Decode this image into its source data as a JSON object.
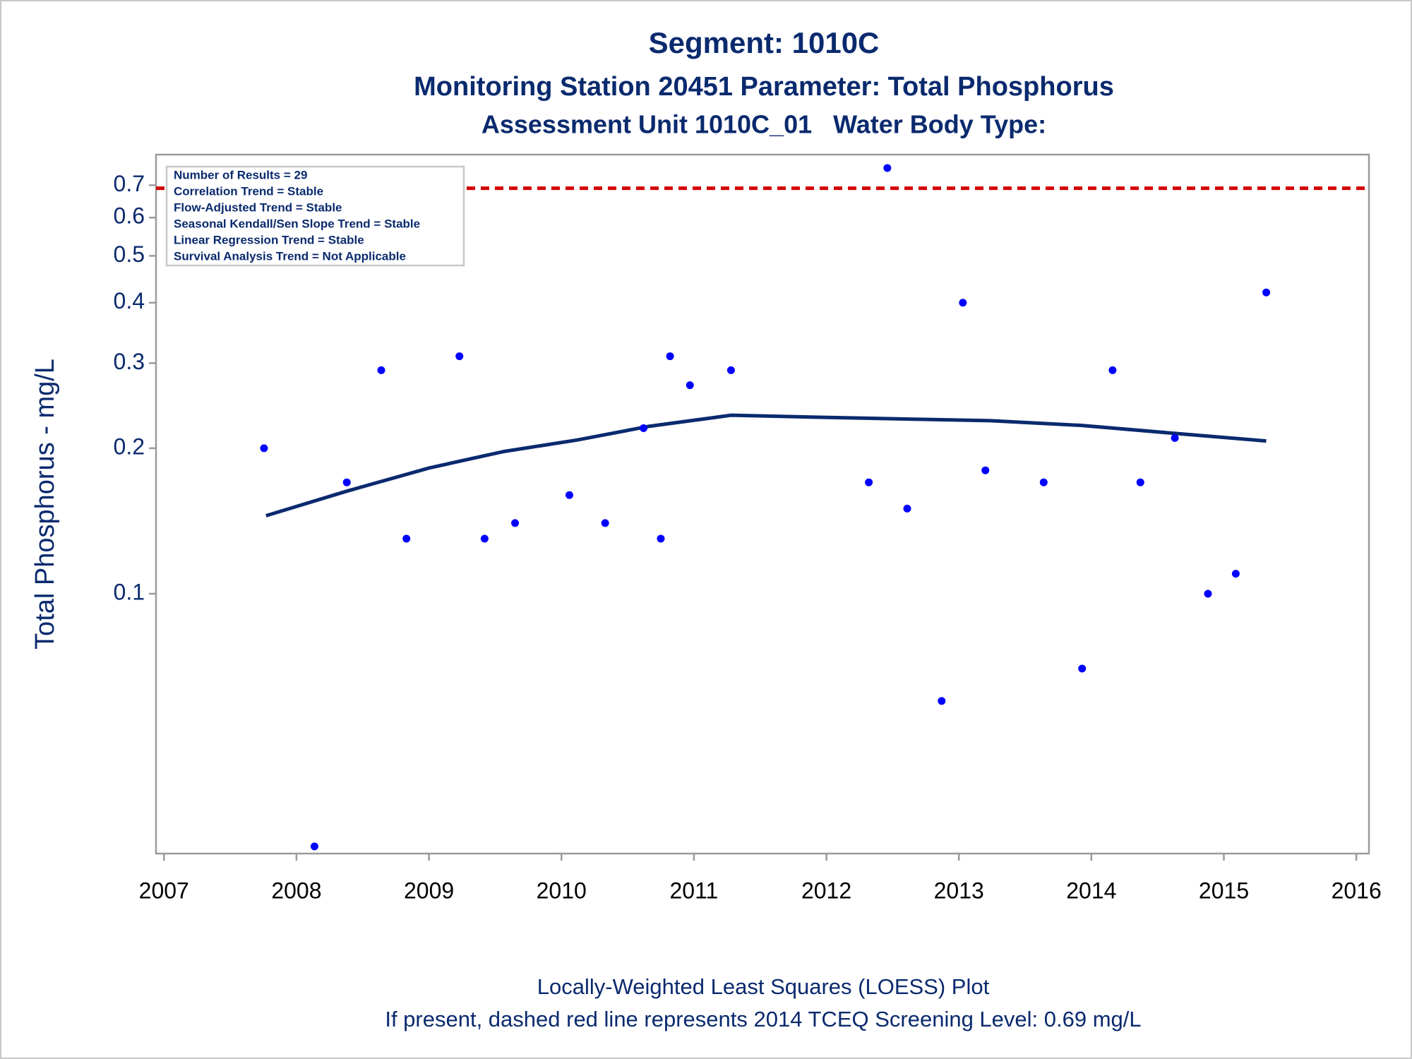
{
  "chart_data": {
    "type": "scatter",
    "title": "Segment: 1010C",
    "subtitles": [
      "Monitoring Station 20451 Parameter: Total Phosphorus",
      "Assessment Unit 1010C_01   Water Body Type:"
    ],
    "y_label": "Total Phosphorus - mg/L",
    "annotations": [
      "Number of Results = 29",
      "Correlation Trend = Stable",
      "Flow-Adjusted Trend = Stable",
      "Seasonal Kendall/Sen Slope Trend = Stable",
      "Linear Regression Trend = Stable",
      "Survival Analysis Trend = Not Applicable"
    ],
    "footnotes": [
      "Locally-Weighted Least Squares (LOESS) Plot",
      "If present, dashed red line represents 2014 TCEQ Screening Level: 0.69 mg/L"
    ],
    "xlim": [
      2006.94,
      2016.095
    ],
    "xticks": [
      2007,
      2008,
      2009,
      2010,
      2011,
      2012,
      2013,
      2014,
      2015,
      2016
    ],
    "ylim": [
      0.029,
      0.81
    ],
    "yticks": [
      0.1,
      0.2,
      0.3,
      0.4,
      0.5,
      0.6,
      0.7
    ],
    "log_y": true,
    "points": {
      "color": "#0000ff",
      "x": [
        2007.755,
        2008.136,
        2008.38,
        2008.64,
        2008.83,
        2009.23,
        2009.42,
        2009.65,
        2010.06,
        2010.33,
        2010.62,
        2010.75,
        2010.82,
        2010.97,
        2011.28,
        2012.32,
        2012.46,
        2012.61,
        2012.87,
        2013.03,
        2013.2,
        2013.64,
        2013.93,
        2014.16,
        2014.37,
        2014.63,
        2014.88,
        2015.09,
        2015.32
      ],
      "values": [
        0.2,
        0.03,
        0.17,
        0.29,
        0.13,
        0.31,
        0.13,
        0.14,
        0.16,
        0.14,
        0.22,
        0.13,
        0.31,
        0.27,
        0.29,
        0.17,
        0.76,
        0.15,
        0.06,
        0.4,
        0.18,
        0.17,
        0.07,
        0.29,
        0.17,
        0.21,
        0.1,
        0.11,
        0.42
      ]
    },
    "loess": {
      "color": "#0a2a6e",
      "x": [
        2007.77,
        2008.38,
        2009.0,
        2009.57,
        2010.12,
        2010.66,
        2011.28,
        2011.88,
        2012.56,
        2013.24,
        2013.92,
        2014.6,
        2015.32
      ],
      "values": [
        0.145,
        0.163,
        0.182,
        0.197,
        0.208,
        0.222,
        0.234,
        0.232,
        0.23,
        0.228,
        0.223,
        0.215,
        0.207
      ]
    },
    "reference_line": {
      "value": 0.69,
      "color": "#d40000"
    }
  }
}
